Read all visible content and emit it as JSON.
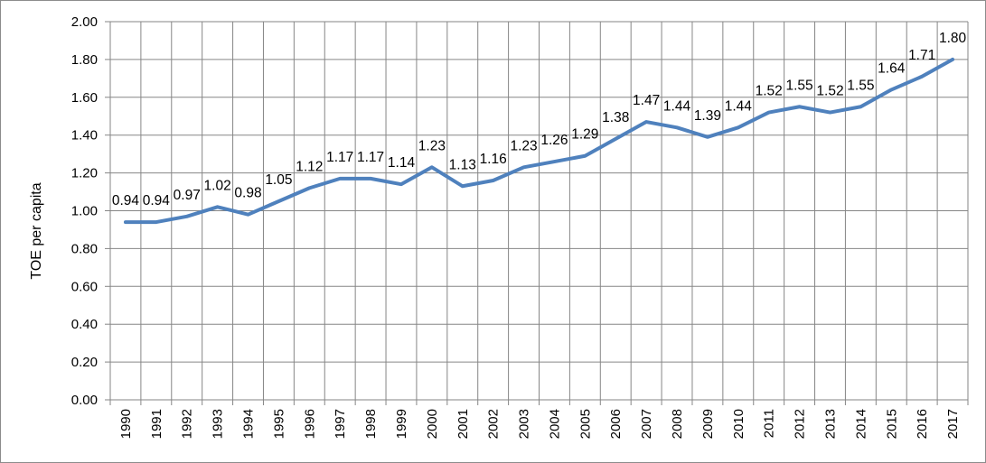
{
  "chart_data": {
    "type": "line",
    "ylabel": "TOE per capita",
    "xlabel": "",
    "title": "",
    "ylim": [
      0,
      2
    ],
    "y_ticks": [
      "0.00",
      "0.20",
      "0.40",
      "0.60",
      "0.80",
      "1.00",
      "1.20",
      "1.40",
      "1.60",
      "1.80",
      "2.00"
    ],
    "categories": [
      "1990",
      "1991",
      "1992",
      "1993",
      "1994",
      "1995",
      "1996",
      "1997",
      "1998",
      "1999",
      "2000",
      "2001",
      "2002",
      "2003",
      "2004",
      "2005",
      "2006",
      "2007",
      "2008",
      "2009",
      "2010",
      "2011",
      "2012",
      "2013",
      "2014",
      "2015",
      "2016",
      "2017"
    ],
    "values": [
      0.94,
      0.94,
      0.97,
      1.02,
      0.98,
      1.05,
      1.12,
      1.17,
      1.17,
      1.14,
      1.23,
      1.13,
      1.16,
      1.23,
      1.26,
      1.29,
      1.38,
      1.47,
      1.44,
      1.39,
      1.44,
      1.52,
      1.55,
      1.52,
      1.55,
      1.64,
      1.71,
      1.8
    ],
    "value_labels": [
      "0.94",
      "0.94",
      "0.97",
      "1.02",
      "0.98",
      "1.05",
      "1.12",
      "1.17",
      "1.17",
      "1.14",
      "1.23",
      "1.13",
      "1.16",
      "1.23",
      "1.26",
      "1.29",
      "1.38",
      "1.47",
      "1.44",
      "1.39",
      "1.44",
      "1.52",
      "1.55",
      "1.52",
      "1.55",
      "1.64",
      "1.71",
      "1.80"
    ],
    "series_color": "#4f81bd",
    "grid": true,
    "legend": "none"
  }
}
